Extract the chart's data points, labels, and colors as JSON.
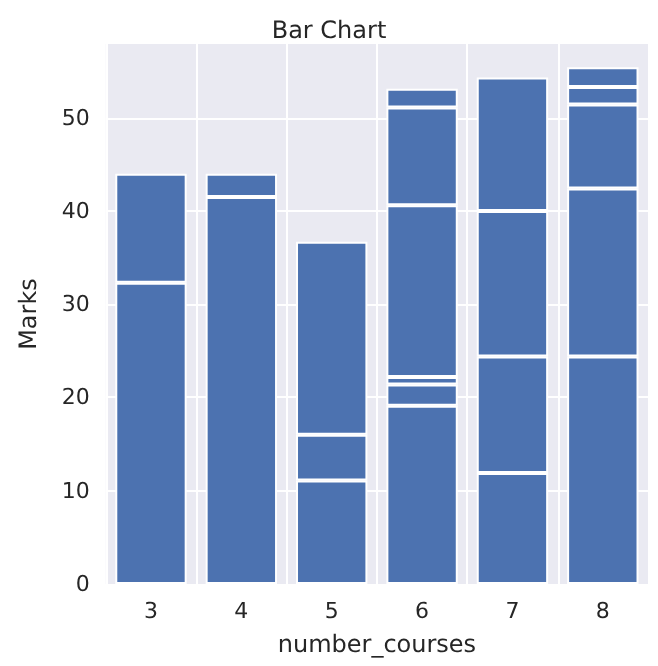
{
  "chart_data": {
    "type": "bar",
    "title": "Bar Chart",
    "xlabel": "number_courses",
    "ylabel": "Marks",
    "categories": [
      "3",
      "4",
      "5",
      "6",
      "7",
      "8"
    ],
    "stacked": true,
    "series": [
      {
        "color": "#4c72b0",
        "values": [
          32.3,
          41.5,
          11.1,
          19.1,
          11.9,
          24.4
        ]
      },
      {
        "color": "#4c72b0",
        "values": [
          11.7,
          2.5,
          4.9,
          2.3,
          12.5,
          18.0
        ]
      },
      {
        "color": "#4c72b0",
        "values": [
          null,
          null,
          20.7,
          0.8,
          15.6,
          9.0
        ]
      },
      {
        "color": "#4c72b0",
        "values": [
          null,
          null,
          null,
          18.4,
          14.3,
          1.9
        ]
      },
      {
        "color": "#4c72b0",
        "values": [
          null,
          null,
          null,
          10.5,
          null,
          2.1
        ]
      },
      {
        "color": "#4c72b0",
        "values": [
          null,
          null,
          null,
          2.0,
          null,
          null
        ]
      }
    ],
    "ylim": [
      0,
      57.9
    ],
    "yticks": [
      0,
      10,
      20,
      30,
      40,
      50
    ],
    "grid": true
  }
}
